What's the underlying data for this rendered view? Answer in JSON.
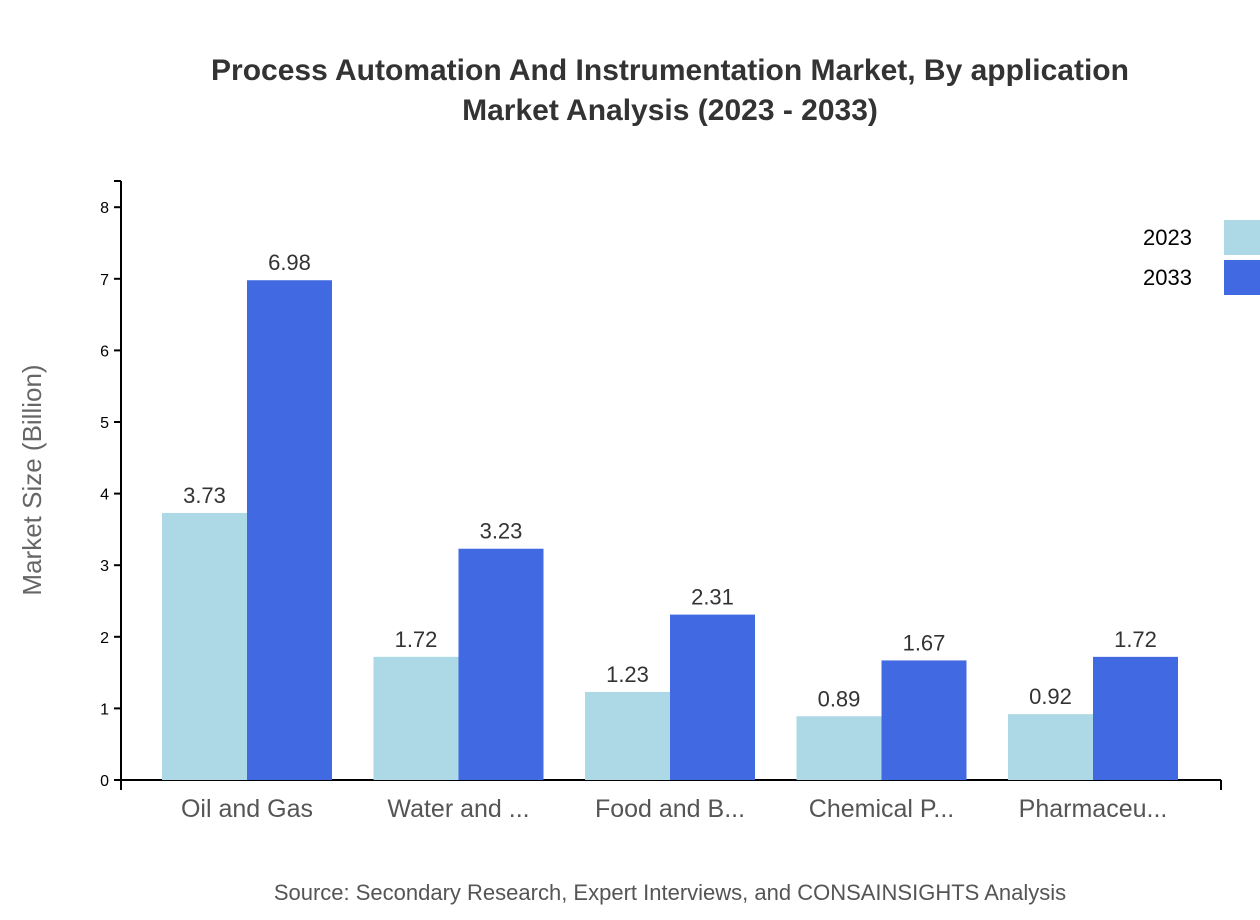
{
  "chart_data": {
    "type": "bar",
    "title_lines": [
      "Process Automation And Instrumentation Market, By application",
      "Market Analysis (2023 - 2033)"
    ],
    "ylabel": "Market Size (Billion)",
    "xlabel": "",
    "ylim": [
      0,
      8.36
    ],
    "yticks": [
      0,
      1,
      2,
      3,
      4,
      5,
      6,
      7,
      8
    ],
    "categories": [
      "Oil and Gas",
      "Water and ...",
      "Food and B...",
      "Chemical P...",
      "Pharmaceu..."
    ],
    "series": [
      {
        "name": "2023",
        "color": "#add8e6",
        "values": [
          3.73,
          1.72,
          1.23,
          0.89,
          0.92
        ]
      },
      {
        "name": "2033",
        "color": "#4169e1",
        "values": [
          6.98,
          3.23,
          2.31,
          1.67,
          1.72
        ]
      }
    ],
    "legend_position": "top-right",
    "grid": false,
    "source": "Source: Secondary Research, Expert Interviews, and CONSAINSIGHTS Analysis"
  }
}
